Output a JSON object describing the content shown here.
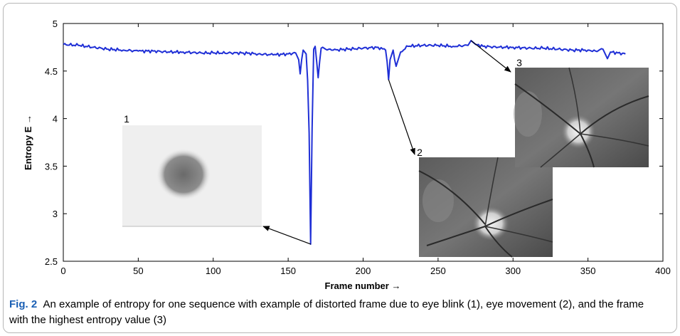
{
  "chart_data": {
    "type": "line",
    "xlabel": "Frame number →",
    "ylabel": "Entropy E →",
    "xlim": [
      0,
      400
    ],
    "ylim": [
      2.5,
      5
    ],
    "xticks": [
      "0",
      "50",
      "100",
      "150",
      "200",
      "250",
      "300",
      "350",
      "400"
    ],
    "yticks": [
      "2.5",
      "3",
      "3.5",
      "4",
      "4.5",
      "5"
    ],
    "grid": false,
    "series": [
      {
        "color": "#1f2fd6",
        "x": [
          0,
          10,
          20,
          30,
          40,
          50,
          60,
          70,
          80,
          90,
          100,
          110,
          120,
          130,
          140,
          150,
          155,
          157,
          158,
          159,
          160,
          162,
          163,
          164,
          165,
          166,
          167,
          168,
          169,
          170,
          171,
          172,
          173,
          175,
          180,
          190,
          200,
          210,
          215,
          216,
          217,
          218,
          220,
          221,
          222,
          225,
          230,
          240,
          250,
          260,
          270,
          272,
          275,
          280,
          290,
          300,
          310,
          320,
          330,
          340,
          350,
          355,
          360,
          363,
          365,
          370,
          375
        ],
        "y": [
          4.78,
          4.77,
          4.75,
          4.73,
          4.72,
          4.71,
          4.71,
          4.7,
          4.7,
          4.69,
          4.69,
          4.69,
          4.69,
          4.68,
          4.67,
          4.68,
          4.69,
          4.62,
          4.47,
          4.62,
          4.72,
          4.68,
          4.4,
          3.85,
          2.68,
          3.9,
          4.73,
          4.76,
          4.6,
          4.43,
          4.6,
          4.74,
          4.75,
          4.73,
          4.72,
          4.73,
          4.74,
          4.75,
          4.72,
          4.6,
          4.41,
          4.62,
          4.72,
          4.62,
          4.55,
          4.7,
          4.76,
          4.77,
          4.77,
          4.76,
          4.77,
          4.82,
          4.78,
          4.76,
          4.75,
          4.75,
          4.74,
          4.74,
          4.73,
          4.72,
          4.72,
          4.71,
          4.73,
          4.63,
          4.7,
          4.69,
          4.68
        ]
      }
    ],
    "annotations": [
      {
        "label": "1",
        "target": [
          165,
          2.68
        ]
      },
      {
        "label": "2",
        "target": [
          217,
          4.41
        ]
      },
      {
        "label": "3",
        "target": [
          272,
          4.82
        ]
      }
    ]
  },
  "figure": {
    "caption_label": "Fig. 2",
    "caption_text": "An example of entropy for one sequence with example of distorted frame due to eye blink (1), eye movement (2), and the frame with the highest entropy value (3)"
  }
}
